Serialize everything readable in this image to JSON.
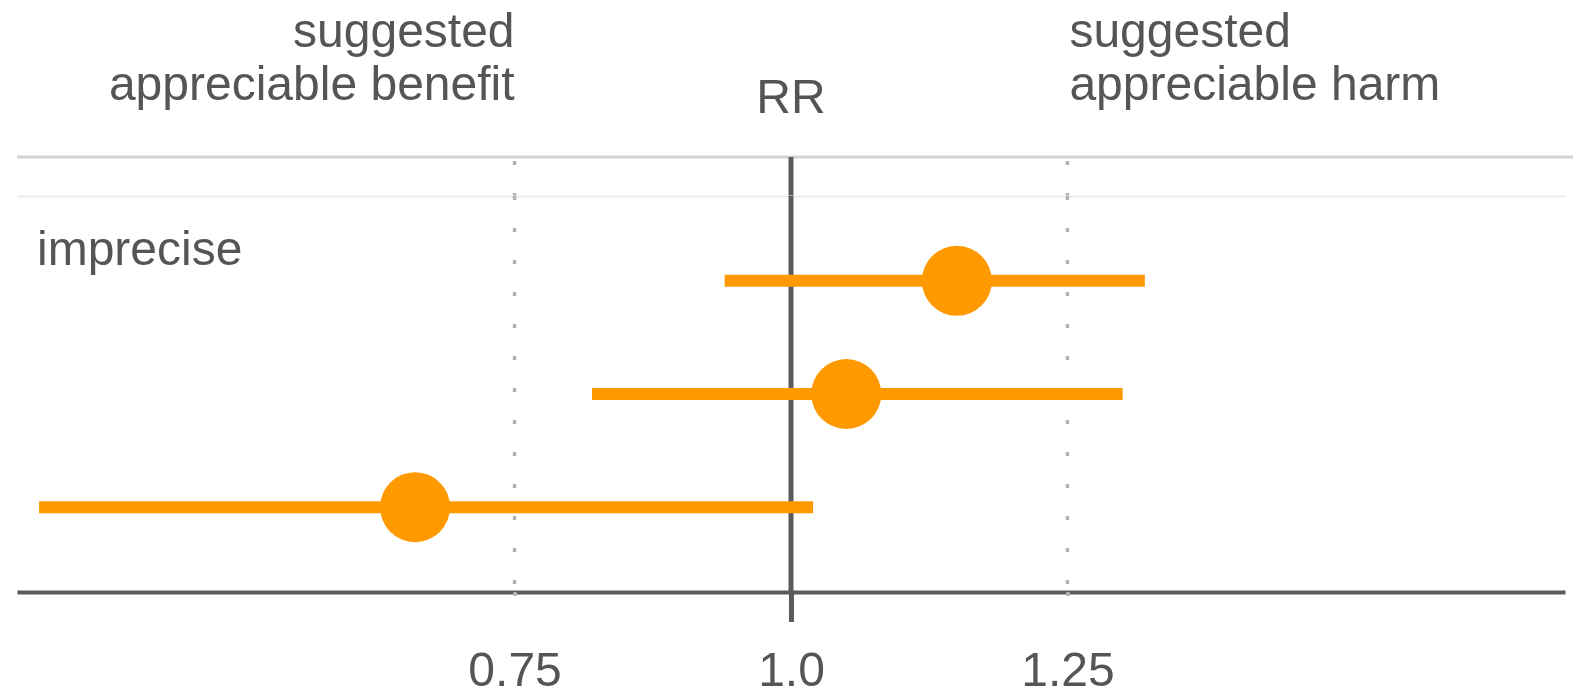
{
  "chart_data": {
    "type": "scatter",
    "orientation": "horizontal",
    "xlabel": "RR",
    "categories": [
      null,
      null,
      null
    ],
    "values": [
      1.15,
      1.05,
      0.66
    ],
    "errors": [
      [
        0.94,
        1.32
      ],
      [
        0.82,
        1.3
      ],
      [
        0.32,
        1.02
      ]
    ],
    "color": "#ff9900",
    "marker": "circle",
    "xlim": [
      0.3,
      1.7
    ],
    "xticks": [
      0.75,
      {
        "value": 1,
        "label": "1.0"
      },
      1.25
    ],
    "ref_lines": [
      {
        "axis": "x",
        "value": 0.75,
        "label": "suggested\nappreciable benefit",
        "line_style": "dotted",
        "color": "#b3b3b3"
      },
      {
        "axis": "x",
        "value": 1,
        "line_style": "solid",
        "color": "#5e5a5a"
      },
      {
        "axis": "x",
        "value": 1.25,
        "label": "suggested\nappreciable harm",
        "line_style": "dotted",
        "color": "#b3b3b3"
      }
    ],
    "annotations": [
      "imprecise"
    ]
  }
}
